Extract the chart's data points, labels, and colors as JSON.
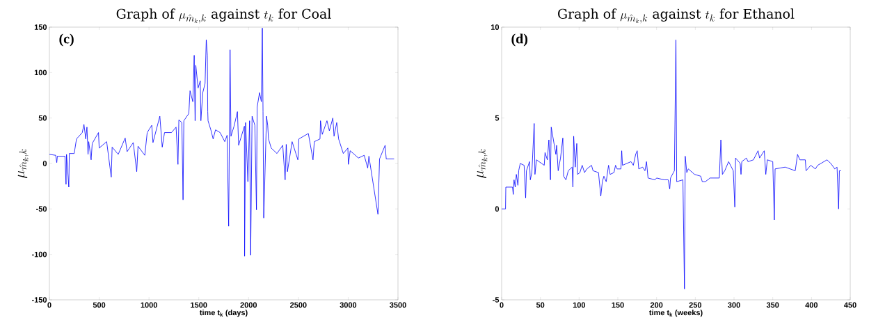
{
  "chart_data": [
    {
      "type": "line",
      "title": "\\mbox{Graph of }\\mu_{\\hat{m}_k,k}\\mbox{ against }t_k\\mbox{ for Coal}",
      "xlabel": "time t$_{k}$ (days)",
      "ylabel": "\\mu_{\\hat{m}_k,k}",
      "annotations": [
        "(c)"
      ],
      "color": "#0000ff",
      "xlim": [
        0,
        3500
      ],
      "ylim": [
        -150,
        150
      ],
      "xticks": [
        0,
        500,
        1000,
        1500,
        2000,
        2500,
        3000,
        3500
      ],
      "yticks": [
        -150,
        -100,
        -50,
        0,
        50,
        100,
        150
      ],
      "x": [
        0,
        63,
        74,
        80,
        156,
        167,
        172,
        195,
        200,
        249,
        272,
        330,
        347,
        365,
        377,
        388,
        395,
        419,
        430,
        493,
        500,
        575,
        621,
        630,
        691,
        761,
        780,
        842,
        877,
        890,
        958,
        982,
        1028,
        1040,
        1109,
        1133,
        1156,
        1226,
        1272,
        1291,
        1300,
        1330,
        1342,
        1350,
        1400,
        1412,
        1440,
        1454,
        1463,
        1470,
        1493,
        1515,
        1521,
        1540,
        1563,
        1575,
        1586,
        1590,
        1593,
        1621,
        1644,
        1668,
        1714,
        1761,
        1784,
        1800,
        1814,
        1823,
        1854,
        1888,
        1900,
        1958,
        1960,
        1970,
        1993,
        2010,
        2021,
        2035,
        2063,
        2079,
        2086,
        2110,
        2128,
        2138,
        2145,
        2152,
        2161,
        2180,
        2192,
        2200,
        2227,
        2285,
        2343,
        2367,
        2378,
        2390,
        2437,
        2495,
        2505,
        2600,
        2647,
        2660,
        2717,
        2722,
        2740,
        2787,
        2811,
        2846,
        2858,
        2885,
        2904,
        2951,
        2997,
        3002,
        3020,
        3103,
        3161,
        3196,
        3208,
        3299,
        3315,
        3371,
        3382,
        3461
      ],
      "values": [
        10,
        9,
        1,
        8,
        8,
        -23,
        10,
        -26,
        11,
        11,
        27,
        34,
        43,
        27,
        40,
        10,
        24,
        4,
        22,
        34,
        17,
        24,
        -15,
        18,
        10,
        28,
        13,
        23,
        -9,
        19,
        9,
        34,
        42,
        23,
        52,
        18,
        34,
        34,
        40,
        -1,
        48,
        45,
        -40,
        47,
        55,
        80,
        68,
        119,
        47,
        108,
        83,
        91,
        47,
        78,
        88,
        136,
        119,
        57,
        47,
        37,
        27,
        37,
        34,
        24,
        31,
        -69,
        125,
        30,
        41,
        57,
        20,
        41,
        -102,
        45,
        -20,
        47,
        -101,
        52,
        42,
        -51,
        62,
        78,
        68,
        149,
        57,
        -60,
        -26,
        52,
        42,
        27,
        17,
        11,
        20,
        -18,
        21,
        -9,
        24,
        4,
        27,
        33,
        4,
        24,
        27,
        47,
        32,
        47,
        36,
        50,
        30,
        45,
        27,
        11,
        17,
        -1,
        14,
        6,
        9,
        -5,
        8,
        -56,
        5,
        20,
        5,
        5
      ]
    },
    {
      "type": "line",
      "title": "\\mbox{Graph of }\\mu_{\\hat{m}_k,k}\\mbox{ against }t_k\\mbox{ for Ethanol}",
      "xlabel": "time t$_{k}$ (weeks)",
      "ylabel": "\\mu_{\\hat{m}_k,k}",
      "annotations": [
        "(d)"
      ],
      "color": "#0000ff",
      "xlim": [
        0,
        450
      ],
      "ylim": [
        -5,
        10
      ],
      "xticks": [
        0,
        50,
        100,
        150,
        200,
        250,
        300,
        350,
        400,
        450
      ],
      "yticks": [
        -5,
        0,
        5,
        10
      ],
      "x": [
        0,
        5,
        5.4,
        14,
        15,
        16,
        17.5,
        19,
        21,
        22,
        24,
        29,
        31,
        32,
        36,
        37,
        39,
        42,
        43,
        45,
        55,
        56,
        59,
        61,
        63,
        64,
        66,
        70,
        71,
        73,
        76,
        79,
        80,
        83,
        86,
        91,
        92,
        93,
        95,
        97,
        98,
        101,
        104,
        107,
        110,
        116,
        118,
        125,
        128,
        130,
        132,
        135,
        138,
        140,
        145,
        147,
        149,
        154,
        155,
        156,
        167,
        170,
        173,
        175,
        177,
        182,
        185,
        187,
        189,
        198,
        200,
        210,
        215,
        217,
        218,
        223,
        225,
        226,
        234,
        236,
        237,
        239,
        241,
        249,
        257,
        259,
        263,
        269,
        281,
        283,
        285,
        288,
        293,
        299,
        301,
        302,
        308,
        309,
        310,
        316,
        318,
        325,
        331,
        333,
        339,
        341,
        343,
        350,
        352,
        353,
        366,
        379,
        382,
        385,
        392,
        393,
        399,
        405,
        408,
        412,
        420,
        425,
        430,
        433,
        435,
        436,
        438
      ],
      "values": [
        0,
        0,
        1.2,
        1.2,
        0.8,
        1.6,
        1.2,
        1.9,
        1.3,
        2.1,
        2.5,
        2.4,
        0.6,
        2.1,
        2.6,
        1.6,
        2.0,
        4.7,
        1.9,
        2.7,
        2.4,
        3.1,
        2.7,
        3.8,
        1.6,
        4.5,
        4.0,
        3.0,
        3.5,
        2.1,
        2.8,
        3.9,
        1.8,
        1.6,
        2.1,
        2.3,
        1.2,
        4.0,
        2.3,
        3.6,
        1.9,
        2.0,
        2.4,
        2.0,
        2.2,
        2.4,
        2.1,
        2.0,
        0.7,
        1.5,
        1.8,
        1.5,
        2.4,
        1.9,
        2.0,
        2.4,
        2.2,
        2.2,
        3.2,
        2.4,
        2.6,
        2.4,
        3.0,
        3.2,
        2.2,
        2.3,
        2.1,
        2.6,
        1.7,
        1.6,
        1.7,
        1.6,
        1.6,
        1.1,
        1.7,
        2.1,
        9.3,
        1.5,
        1.6,
        -4.4,
        2.9,
        2.0,
        2.2,
        1.9,
        1.8,
        1.5,
        1.5,
        1.7,
        1.7,
        3.8,
        1.9,
        2.1,
        2.6,
        2.1,
        0.1,
        2.8,
        2.5,
        1.9,
        2.6,
        2.8,
        2.6,
        2.7,
        3.2,
        2.8,
        3.2,
        1.9,
        2.7,
        2.6,
        -0.6,
        2.2,
        2.3,
        2.1,
        3.0,
        2.7,
        2.7,
        2.1,
        2.4,
        2.2,
        2.4,
        2.5,
        2.7,
        2.5,
        2.2,
        2.3,
        0,
        2.1,
        2.1
      ]
    }
  ]
}
